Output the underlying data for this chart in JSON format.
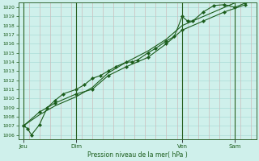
{
  "title": "Pression niveau de la mer( hPa )",
  "bg_color": "#cff0eb",
  "grid_h_color": "#aaddd8",
  "grid_v_color": "#ccbbbb",
  "line_color": "#1a5c1a",
  "marker_color": "#1a5c1a",
  "ylim": [
    1005.5,
    1020.5
  ],
  "yticks": [
    1006,
    1007,
    1008,
    1009,
    1010,
    1011,
    1012,
    1013,
    1014,
    1015,
    1016,
    1017,
    1018,
    1019,
    1020
  ],
  "xtick_labels": [
    "Jeu",
    "Dim",
    "Ven",
    "Sam"
  ],
  "xtick_positions": [
    0,
    2,
    6,
    8
  ],
  "day_lines": [
    0,
    2,
    6,
    8
  ],
  "xlim": [
    -0.2,
    8.8
  ],
  "series1_x": [
    0.0,
    0.15,
    0.3,
    0.6,
    0.9,
    1.2,
    1.5,
    2.0,
    2.3,
    2.6,
    2.9,
    3.2,
    3.5,
    3.9,
    4.1,
    4.3,
    4.7,
    5.0,
    5.4,
    5.7,
    6.0,
    6.2,
    6.4,
    6.8,
    7.2,
    7.6,
    8.0,
    8.4
  ],
  "series1_y": [
    1007.0,
    1006.7,
    1006.0,
    1007.1,
    1009.0,
    1009.8,
    1010.5,
    1011.0,
    1011.5,
    1012.2,
    1012.5,
    1013.0,
    1013.5,
    1014.0,
    1014.0,
    1014.2,
    1015.0,
    1015.5,
    1016.3,
    1016.8,
    1019.0,
    1018.5,
    1018.5,
    1019.5,
    1020.2,
    1020.3,
    1020.0,
    1020.5
  ],
  "series2_x": [
    0.0,
    0.6,
    1.2,
    2.0,
    2.6,
    3.2,
    3.9,
    4.7,
    5.4,
    6.0,
    6.8,
    7.6,
    8.4
  ],
  "series2_y": [
    1007.0,
    1008.5,
    1009.5,
    1010.5,
    1011.0,
    1012.5,
    1013.5,
    1014.5,
    1016.0,
    1017.5,
    1018.5,
    1019.5,
    1020.3
  ],
  "series3_x": [
    0.0,
    0.6,
    1.2,
    2.0,
    2.6,
    3.2,
    3.9,
    4.7,
    5.4,
    6.0,
    6.8,
    7.6,
    8.4
  ],
  "series3_y": [
    1007.0,
    1008.2,
    1009.2,
    1010.2,
    1011.2,
    1012.8,
    1014.0,
    1015.2,
    1016.5,
    1018.0,
    1019.0,
    1020.0,
    1021.0
  ]
}
